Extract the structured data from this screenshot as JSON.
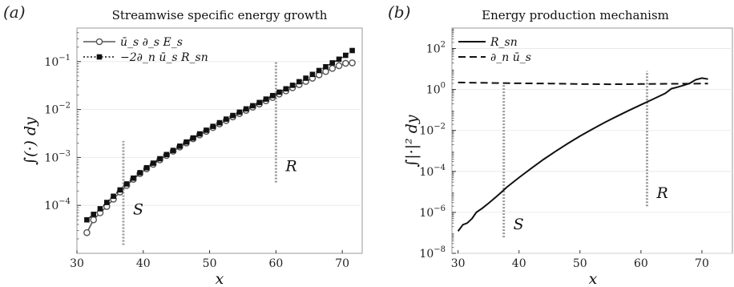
{
  "chart_data": [
    {
      "panel_label": "(a)",
      "type": "scatter",
      "title": "Streamwise specific energy growth",
      "xlabel": "x",
      "ylabel": "∫(·) dy",
      "xlim": [
        30,
        73
      ],
      "ylim": [
        1e-05,
        0.5
      ],
      "yscale": "log",
      "xticks": [
        "30",
        "40",
        "50",
        "60",
        "70"
      ],
      "yticks": [
        {
          "mant": "10",
          "exp": "−4"
        },
        {
          "mant": "10",
          "exp": "−3"
        },
        {
          "mant": "10",
          "exp": "−2"
        },
        {
          "mant": "10",
          "exp": "−1"
        }
      ],
      "legend_position": "top-left",
      "series": [
        {
          "name": "ū_s ∂_s E_s",
          "marker": "open-circle",
          "line": "solid",
          "color": "#555555",
          "x": [
            31.5,
            32.5,
            33.5,
            34.5,
            35.5,
            36.5,
            37.5,
            38.5,
            39.5,
            40.5,
            41.5,
            42.5,
            43.5,
            44.5,
            45.5,
            46.5,
            47.5,
            48.5,
            49.5,
            50.5,
            51.5,
            52.5,
            53.5,
            54.5,
            55.5,
            56.5,
            57.5,
            58.5,
            59.5,
            60.5,
            61.5,
            62.5,
            63.5,
            64.5,
            65.5,
            66.5,
            67.5,
            68.5,
            69.5,
            70.5,
            71.5
          ],
          "y": [
            2.7e-05,
            5e-05,
            7e-05,
            9.5e-05,
            0.000135,
            0.00019,
            0.00026,
            0.00035,
            0.00046,
            0.00058,
            0.00072,
            0.00089,
            0.0011,
            0.00135,
            0.00165,
            0.002,
            0.00245,
            0.00295,
            0.0035,
            0.0042,
            0.005,
            0.0059,
            0.007,
            0.0082,
            0.0096,
            0.0112,
            0.013,
            0.0152,
            0.0178,
            0.021,
            0.0245,
            0.0285,
            0.033,
            0.0385,
            0.045,
            0.053,
            0.062,
            0.072,
            0.082,
            0.092,
            0.094
          ]
        },
        {
          "name": "−2∂_n ū_s R_sn",
          "marker": "filled-square",
          "line": "dotted",
          "color": "#111111",
          "x": [
            31.5,
            32.5,
            33.5,
            34.5,
            35.5,
            36.5,
            37.5,
            38.5,
            39.5,
            40.5,
            41.5,
            42.5,
            43.5,
            44.5,
            45.5,
            46.5,
            47.5,
            48.5,
            49.5,
            50.5,
            51.5,
            52.5,
            53.5,
            54.5,
            55.5,
            56.5,
            57.5,
            58.5,
            59.5,
            60.5,
            61.5,
            62.5,
            63.5,
            64.5,
            65.5,
            66.5,
            67.5,
            68.5,
            69.5,
            70.5,
            71.5
          ],
          "y": [
            5e-05,
            6.5e-05,
            8.5e-05,
            0.000115,
            0.000155,
            0.00021,
            0.00028,
            0.00037,
            0.00048,
            0.00061,
            0.00076,
            0.00094,
            0.00115,
            0.0014,
            0.00172,
            0.0021,
            0.00255,
            0.0031,
            0.0037,
            0.00445,
            0.0053,
            0.0063,
            0.0075,
            0.0088,
            0.0103,
            0.012,
            0.014,
            0.0165,
            0.0195,
            0.023,
            0.027,
            0.032,
            0.038,
            0.045,
            0.054,
            0.065,
            0.078,
            0.094,
            0.112,
            0.135,
            0.17
          ]
        }
      ],
      "annotations": [
        {
          "label": "S",
          "x": 37,
          "y_from": 1.5e-05,
          "y_to": 0.0022
        },
        {
          "label": "R",
          "x": 60,
          "y_from": 0.0003,
          "y_to": 0.1
        }
      ]
    },
    {
      "panel_label": "(b)",
      "type": "line",
      "title": "Energy production mechanism",
      "xlabel": "x",
      "ylabel": "∫|·|² dy",
      "xlim": [
        29,
        75
      ],
      "ylim": [
        1e-08,
        1000
      ],
      "yscale": "log",
      "xticks": [
        "30",
        "40",
        "50",
        "60",
        "70"
      ],
      "yticks": [
        {
          "mant": "10",
          "exp": "−8"
        },
        {
          "mant": "10",
          "exp": "−6"
        },
        {
          "mant": "10",
          "exp": "−4"
        },
        {
          "mant": "10",
          "exp": "−2"
        },
        {
          "mant": "10",
          "exp": "0"
        },
        {
          "mant": "10",
          "exp": "2"
        }
      ],
      "legend_position": "top-left",
      "series": [
        {
          "name": "R_sn",
          "line": "solid",
          "color": "#111111",
          "x": [
            30.0,
            30.8,
            31.5,
            32.3,
            33.0,
            34.0,
            35.0,
            36.0,
            37.0,
            38.0,
            40.0,
            42.0,
            44.0,
            46.0,
            48.0,
            50.0,
            52.0,
            54.0,
            56.0,
            58.0,
            60.0,
            62.0,
            64.0,
            65.0,
            66.0,
            67.0,
            68.0,
            69.0,
            70.0,
            71.0
          ],
          "y": [
            1.2e-07,
            2.5e-07,
            3e-07,
            5e-07,
            1e-06,
            1.6e-06,
            2.8e-06,
            5e-06,
            9e-06,
            1.7e-05,
            5e-05,
            0.00014,
            0.00038,
            0.00095,
            0.0023,
            0.0053,
            0.0115,
            0.024,
            0.048,
            0.095,
            0.18,
            0.34,
            0.65,
            1.1,
            1.3,
            1.6,
            2.0,
            3.0,
            3.6,
            3.2
          ]
        },
        {
          "name": "∂_n ū_s",
          "line": "dashed",
          "color": "#111111",
          "x": [
            30,
            35,
            40,
            45,
            50,
            55,
            60,
            65,
            71
          ],
          "y": [
            2.2,
            2.1,
            2.0,
            1.95,
            1.85,
            1.8,
            1.85,
            1.9,
            1.95
          ]
        }
      ],
      "annotations": [
        {
          "label": "S",
          "x": 37.5,
          "y_from": 6e-08,
          "y_to": 2.0
        },
        {
          "label": "R",
          "x": 61,
          "y_from": 2e-06,
          "y_to": 8.0
        }
      ]
    }
  ]
}
